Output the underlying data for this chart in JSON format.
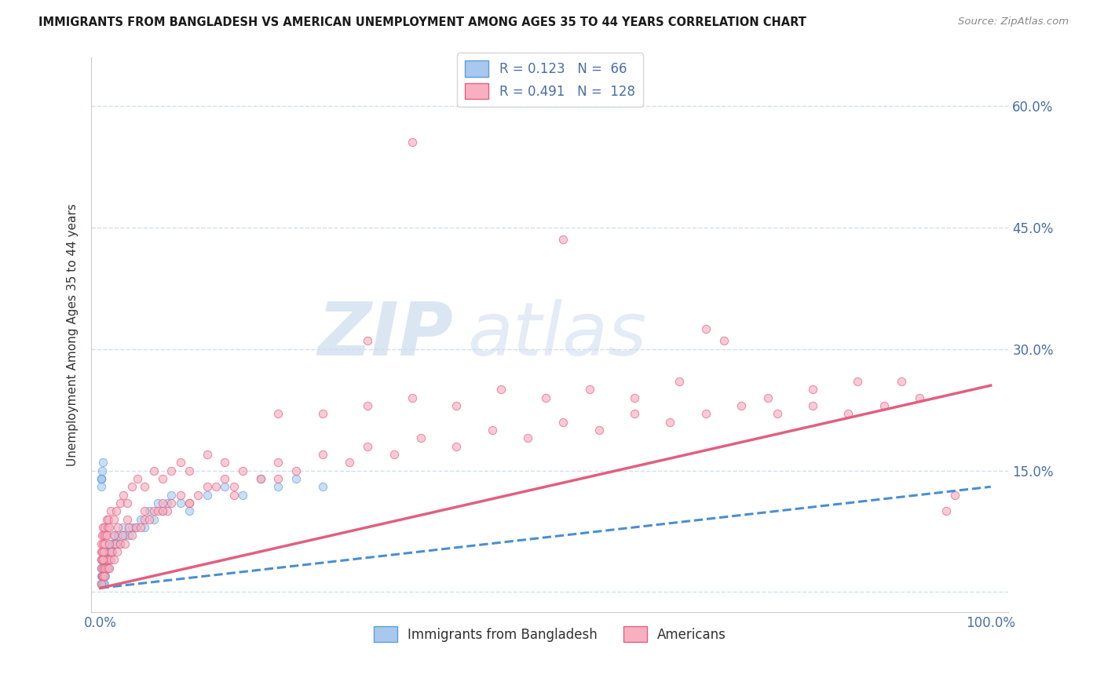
{
  "title": "IMMIGRANTS FROM BANGLADESH VS AMERICAN UNEMPLOYMENT AMONG AGES 35 TO 44 YEARS CORRELATION CHART",
  "source": "Source: ZipAtlas.com",
  "ylabel": "Unemployment Among Ages 35 to 44 years",
  "ytick_values": [
    0.0,
    0.15,
    0.3,
    0.45,
    0.6
  ],
  "ytick_labels": [
    "",
    "15.0%",
    "30.0%",
    "45.0%",
    "60.0%"
  ],
  "xtick_values": [
    0.0,
    1.0
  ],
  "xtick_labels": [
    "0.0%",
    "100.0%"
  ],
  "xlim": [
    -0.01,
    1.02
  ],
  "ylim": [
    -0.025,
    0.66
  ],
  "watermark_zip": "ZIP",
  "watermark_atlas": "atlas",
  "bg_color": "#ffffff",
  "grid_color": "#d0dff0",
  "title_color": "#1a1a1a",
  "tick_color": "#4a6fa5",
  "source_color": "#888888",
  "scatter_size": 55,
  "legend_top": [
    {
      "label": "R = 0.123   N =  66",
      "face": "#a8c8f0",
      "edge": "#5a9fd4"
    },
    {
      "label": "R = 0.491   N =  128",
      "face": "#f8b0c0",
      "edge": "#e06080"
    }
  ],
  "legend_bottom": [
    {
      "label": "Immigrants from Bangladesh",
      "face": "#a8c8f0",
      "edge": "#5a9fd4"
    },
    {
      "label": "Americans",
      "face": "#f8b0c0",
      "edge": "#e06080"
    }
  ],
  "series": [
    {
      "name": "Immigrants from Bangladesh",
      "scatter_color": "#a8c8f0",
      "scatter_edge": "#5a9fd4",
      "scatter_alpha": 0.6,
      "line_color": "#4a8fcf",
      "line_style": "--",
      "line_width": 2.2,
      "trend": [
        0.005,
        0.13
      ],
      "x": [
        0.0008,
        0.001,
        0.001,
        0.0012,
        0.0015,
        0.0018,
        0.002,
        0.002,
        0.0022,
        0.0025,
        0.003,
        0.003,
        0.003,
        0.0032,
        0.0035,
        0.004,
        0.004,
        0.0042,
        0.005,
        0.005,
        0.005,
        0.006,
        0.006,
        0.007,
        0.007,
        0.008,
        0.009,
        0.009,
        0.01,
        0.011,
        0.012,
        0.013,
        0.014,
        0.015,
        0.016,
        0.018,
        0.02,
        0.022,
        0.025,
        0.028,
        0.032,
        0.036,
        0.04,
        0.045,
        0.05,
        0.055,
        0.06,
        0.065,
        0.07,
        0.075,
        0.08,
        0.09,
        0.1,
        0.12,
        0.14,
        0.16,
        0.18,
        0.2,
        0.22,
        0.25,
        0.001,
        0.0008,
        0.001,
        0.0015,
        0.002,
        0.003
      ],
      "y": [
        0.01,
        0.02,
        0.04,
        0.01,
        0.03,
        0.02,
        0.01,
        0.03,
        0.02,
        0.01,
        0.02,
        0.03,
        0.01,
        0.04,
        0.02,
        0.01,
        0.03,
        0.02,
        0.01,
        0.03,
        0.05,
        0.02,
        0.04,
        0.03,
        0.05,
        0.04,
        0.03,
        0.05,
        0.04,
        0.05,
        0.05,
        0.06,
        0.05,
        0.06,
        0.07,
        0.06,
        0.07,
        0.06,
        0.08,
        0.07,
        0.07,
        0.08,
        0.08,
        0.09,
        0.08,
        0.1,
        0.09,
        0.11,
        0.1,
        0.11,
        0.12,
        0.11,
        0.1,
        0.12,
        0.13,
        0.12,
        0.14,
        0.13,
        0.14,
        0.13,
        0.13,
        0.14,
        0.14,
        0.14,
        0.15,
        0.16
      ]
    },
    {
      "name": "Americans",
      "scatter_color": "#f8b0c0",
      "scatter_edge": "#e06080",
      "scatter_alpha": 0.65,
      "line_color": "#e06080",
      "line_style": "-",
      "line_width": 2.5,
      "trend": [
        0.005,
        0.255
      ],
      "x": [
        0.001,
        0.001,
        0.001,
        0.002,
        0.002,
        0.003,
        0.003,
        0.004,
        0.005,
        0.005,
        0.006,
        0.007,
        0.008,
        0.009,
        0.01,
        0.011,
        0.012,
        0.013,
        0.015,
        0.017,
        0.019,
        0.022,
        0.025,
        0.028,
        0.032,
        0.036,
        0.04,
        0.045,
        0.05,
        0.055,
        0.06,
        0.065,
        0.07,
        0.075,
        0.08,
        0.09,
        0.1,
        0.11,
        0.12,
        0.13,
        0.14,
        0.15,
        0.16,
        0.18,
        0.2,
        0.22,
        0.25,
        0.28,
        0.3,
        0.33,
        0.36,
        0.4,
        0.44,
        0.48,
        0.52,
        0.56,
        0.6,
        0.64,
        0.68,
        0.72,
        0.76,
        0.8,
        0.84,
        0.88,
        0.92,
        0.96,
        0.001,
        0.001,
        0.002,
        0.002,
        0.003,
        0.003,
        0.004,
        0.005,
        0.006,
        0.007,
        0.008,
        0.009,
        0.01,
        0.012,
        0.015,
        0.018,
        0.022,
        0.026,
        0.03,
        0.036,
        0.042,
        0.05,
        0.06,
        0.07,
        0.08,
        0.09,
        0.1,
        0.12,
        0.14,
        0.2,
        0.25,
        0.3,
        0.35,
        0.4,
        0.45,
        0.5,
        0.55,
        0.6,
        0.65,
        0.7,
        0.75,
        0.8,
        0.85,
        0.9,
        0.95,
        0.003,
        0.004,
        0.005,
        0.007,
        0.01,
        0.015,
        0.02,
        0.03,
        0.05,
        0.07,
        0.1,
        0.15,
        0.2
      ],
      "y": [
        0.01,
        0.03,
        0.05,
        0.02,
        0.04,
        0.02,
        0.04,
        0.03,
        0.02,
        0.04,
        0.03,
        0.04,
        0.03,
        0.04,
        0.03,
        0.05,
        0.04,
        0.05,
        0.04,
        0.06,
        0.05,
        0.06,
        0.07,
        0.06,
        0.08,
        0.07,
        0.08,
        0.08,
        0.09,
        0.09,
        0.1,
        0.1,
        0.11,
        0.1,
        0.11,
        0.12,
        0.11,
        0.12,
        0.13,
        0.13,
        0.14,
        0.13,
        0.15,
        0.14,
        0.16,
        0.15,
        0.17,
        0.16,
        0.18,
        0.17,
        0.19,
        0.18,
        0.2,
        0.19,
        0.21,
        0.2,
        0.22,
        0.21,
        0.22,
        0.23,
        0.22,
        0.23,
        0.22,
        0.23,
        0.24,
        0.12,
        0.04,
        0.06,
        0.05,
        0.07,
        0.06,
        0.08,
        0.07,
        0.08,
        0.07,
        0.09,
        0.08,
        0.09,
        0.08,
        0.1,
        0.09,
        0.1,
        0.11,
        0.12,
        0.11,
        0.13,
        0.14,
        0.13,
        0.15,
        0.14,
        0.15,
        0.16,
        0.15,
        0.17,
        0.16,
        0.22,
        0.22,
        0.23,
        0.24,
        0.23,
        0.25,
        0.24,
        0.25,
        0.24,
        0.26,
        0.31,
        0.24,
        0.25,
        0.26,
        0.26,
        0.1,
        0.04,
        0.05,
        0.06,
        0.07,
        0.06,
        0.07,
        0.08,
        0.09,
        0.1,
        0.1,
        0.11,
        0.12,
        0.14
      ]
    }
  ],
  "outliers_pink": {
    "x": [
      0.35,
      0.52,
      0.68,
      0.3
    ],
    "y": [
      0.555,
      0.435,
      0.325,
      0.31
    ]
  }
}
